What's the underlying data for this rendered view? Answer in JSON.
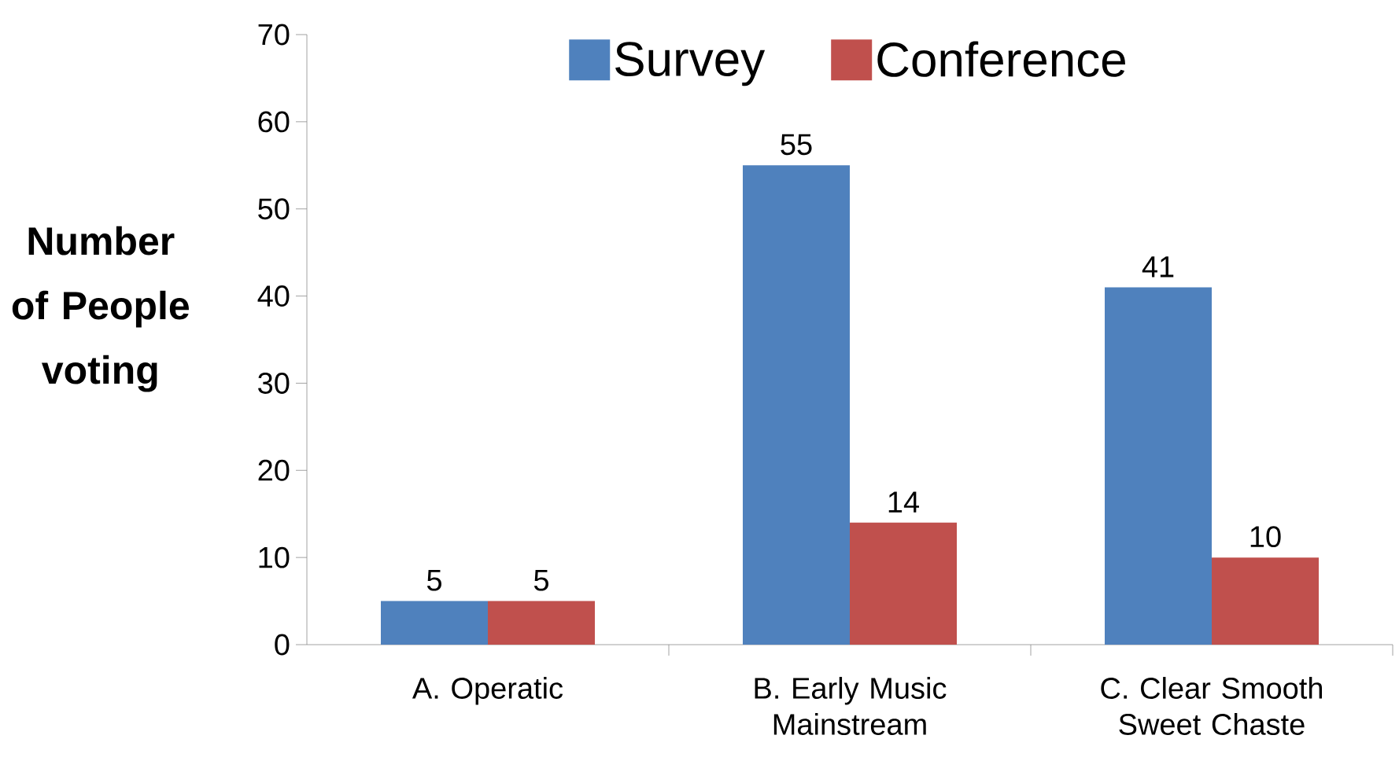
{
  "chart_data": {
    "type": "bar",
    "ylabel": "Number of People voting",
    "categories": [
      "A. Operatic",
      "B. Early Music Mainstream",
      "C. Clear Smooth Sweet Chaste"
    ],
    "series": [
      {
        "name": "Survey",
        "color": "#4f81bd",
        "values": [
          5,
          55,
          41
        ]
      },
      {
        "name": "Conference",
        "color": "#c0504d",
        "values": [
          5,
          14,
          10
        ]
      }
    ],
    "ylim": [
      0,
      70
    ],
    "yticks": [
      0,
      10,
      20,
      30,
      40,
      50,
      60,
      70
    ],
    "data_labels": true,
    "legend": "top",
    "grid": false
  }
}
